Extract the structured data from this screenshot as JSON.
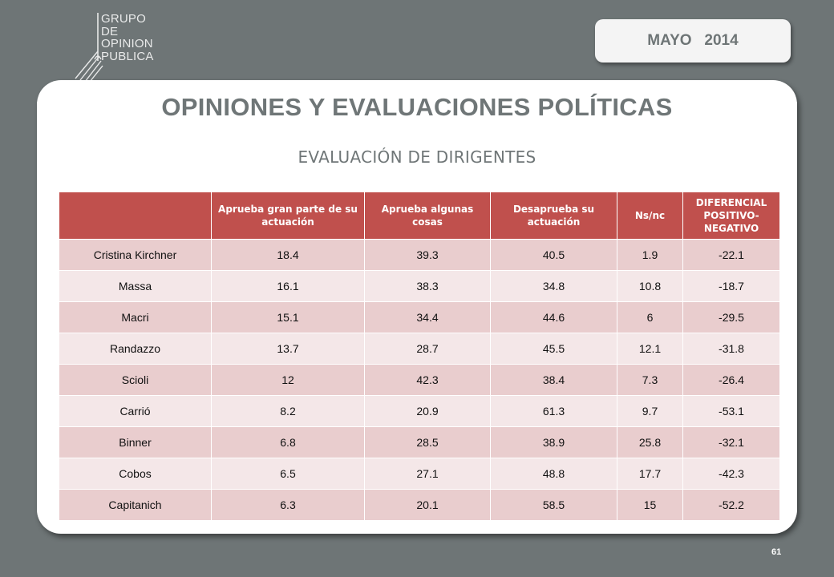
{
  "logo": {
    "lines": [
      "GRUPO",
      "DE",
      "OPINION",
      "PUBLICA"
    ]
  },
  "date": {
    "month": "MAYO",
    "year": "2014"
  },
  "title": "OPINIONES Y EVALUACIONES POLÍTICAS",
  "subtitle": "EVALUACIÓN DE DIRIGENTES",
  "table": {
    "headers": [
      "",
      "Aprueba gran parte de su actuación",
      "Aprueba algunas cosas",
      "Desaprueba su actuación",
      "Ns/nc",
      "DIFERENCIAL POSITIVO-NEGATIVO"
    ],
    "rows": [
      [
        "Cristina Kirchner",
        "18.4",
        "39.3",
        "40.5",
        "1.9",
        "-22.1"
      ],
      [
        "Massa",
        "16.1",
        "38.3",
        "34.8",
        "10.8",
        "-18.7"
      ],
      [
        "Macri",
        "15.1",
        "34.4",
        "44.6",
        "6",
        "-29.5"
      ],
      [
        "Randazzo",
        "13.7",
        "28.7",
        "45.5",
        "12.1",
        "-31.8"
      ],
      [
        "Scioli",
        "12",
        "42.3",
        "38.4",
        "7.3",
        "-26.4"
      ],
      [
        "Carrió",
        "8.2",
        "20.9",
        "61.3",
        "9.7",
        "-53.1"
      ],
      [
        "Binner",
        "6.8",
        "28.5",
        "38.9",
        "25.8",
        "-32.1"
      ],
      [
        "Cobos",
        "6.5",
        "27.1",
        "48.8",
        "17.7",
        "-42.3"
      ],
      [
        "Capitanich",
        "6.3",
        "20.1",
        "58.5",
        "15",
        "-52.2"
      ]
    ]
  },
  "page_number": "61",
  "colors": {
    "background": "#6e7576",
    "header_fill": "#c0504d",
    "row_odd": "#e9cdce",
    "row_even": "#f4e7e8",
    "title_text": "#6f7677"
  }
}
